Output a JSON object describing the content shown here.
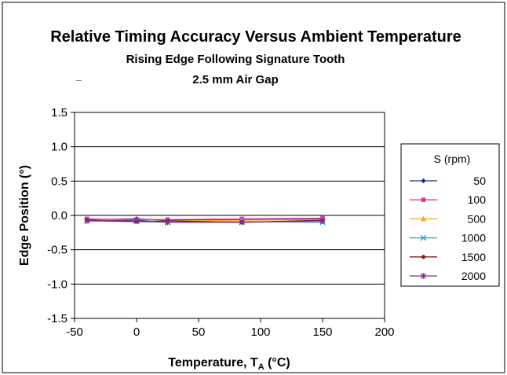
{
  "chart_data": {
    "type": "line",
    "title": "Relative Timing Accuracy Versus Ambient Temperature",
    "subtitle": "Rising Edge Following Signature Tooth",
    "subtitle2": "2.5 mm Air Gap",
    "stray_mark": "_",
    "xlabel_main": "Temperature, T",
    "xlabel_sub": "A",
    "xlabel_unit": " (°C)",
    "ylabel": "Edge Position (°)",
    "xlim": [
      -50,
      200
    ],
    "ylim": [
      -1.5,
      1.5
    ],
    "x_ticks": [
      "-50",
      "0",
      "50",
      "100",
      "150",
      "200"
    ],
    "y_ticks": [
      "1.5",
      "1.0",
      "0.5",
      "0.0",
      "-0.5",
      "-1.0",
      "-1.5"
    ],
    "grid": "horizontal",
    "legend_position": "right",
    "legend_title": "S (rpm)",
    "x": [
      -40,
      0,
      25,
      85,
      150
    ],
    "series": [
      {
        "name": "50",
        "color": "#1f2f8f",
        "marker": "diamond",
        "values": [
          -0.06,
          -0.05,
          -0.07,
          -0.06,
          -0.05
        ]
      },
      {
        "name": "100",
        "color": "#e0389a",
        "marker": "square",
        "values": [
          -0.05,
          -0.06,
          -0.06,
          -0.05,
          -0.04
        ]
      },
      {
        "name": "500",
        "color": "#f2a71c",
        "marker": "triangle",
        "values": [
          -0.07,
          -0.08,
          -0.08,
          -0.07,
          -0.06
        ]
      },
      {
        "name": "1000",
        "color": "#2a9bd6",
        "marker": "x",
        "values": [
          -0.08,
          -0.09,
          -0.1,
          -0.09,
          -0.1
        ]
      },
      {
        "name": "1500",
        "color": "#7a1f12",
        "marker": "circle",
        "values": [
          -0.07,
          -0.09,
          -0.08,
          -0.1,
          -0.07
        ]
      },
      {
        "name": "2000",
        "color": "#7b2f8e",
        "marker": "asterisk",
        "values": [
          -0.08,
          -0.07,
          -0.1,
          -0.1,
          -0.08
        ]
      }
    ]
  }
}
